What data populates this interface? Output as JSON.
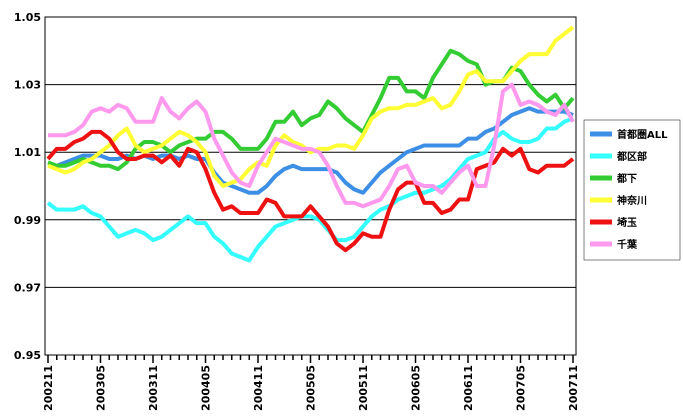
{
  "chart_data": {
    "type": "line",
    "categories": [
      "200211",
      null,
      null,
      null,
      null,
      null,
      "200305",
      null,
      null,
      null,
      null,
      null,
      "200311",
      null,
      null,
      null,
      null,
      null,
      "200405",
      null,
      null,
      null,
      null,
      null,
      "200411",
      null,
      null,
      null,
      null,
      null,
      "200505",
      null,
      null,
      null,
      null,
      null,
      "200511",
      null,
      null,
      null,
      null,
      null,
      "200605",
      null,
      null,
      null,
      null,
      null,
      "200611",
      null,
      null,
      null,
      null,
      null,
      "200705",
      null,
      null,
      null,
      null,
      null,
      "200711"
    ],
    "ylim": [
      0.95,
      1.05
    ],
    "yticks": [
      0.95,
      0.97,
      0.99,
      1.01,
      1.03,
      1.05
    ],
    "grid": true,
    "legend": "right",
    "series": [
      {
        "name": "首都圏ALL",
        "color": "#3d8fe6",
        "values": [
          1.006,
          1.006,
          1.007,
          1.008,
          1.009,
          1.009,
          1.009,
          1.008,
          1.008,
          1.009,
          1.008,
          1.009,
          1.008,
          1.009,
          1.009,
          1.008,
          1.009,
          1.008,
          1.008,
          1.004,
          1.001,
          1.0,
          0.999,
          0.998,
          0.998,
          1.0,
          1.003,
          1.005,
          1.006,
          1.005,
          1.005,
          1.005,
          1.005,
          1.004,
          1.001,
          0.999,
          0.998,
          1.001,
          1.004,
          1.006,
          1.008,
          1.01,
          1.011,
          1.012,
          1.012,
          1.012,
          1.012,
          1.012,
          1.014,
          1.014,
          1.016,
          1.017,
          1.019,
          1.021,
          1.022,
          1.023,
          1.022,
          1.022,
          1.022,
          1.022,
          1.021
        ]
      },
      {
        "name": "都区部",
        "color": "#33ffff",
        "values": [
          0.995,
          0.993,
          0.993,
          0.993,
          0.994,
          0.992,
          0.991,
          0.988,
          0.985,
          0.986,
          0.987,
          0.986,
          0.984,
          0.985,
          0.987,
          0.989,
          0.991,
          0.989,
          0.989,
          0.985,
          0.983,
          0.98,
          0.979,
          0.978,
          0.982,
          0.985,
          0.988,
          0.989,
          0.99,
          0.991,
          0.991,
          0.99,
          0.987,
          0.984,
          0.984,
          0.985,
          0.988,
          0.991,
          0.993,
          0.994,
          0.996,
          0.997,
          0.998,
          0.998,
          0.999,
          1.0,
          1.002,
          1.005,
          1.008,
          1.009,
          1.01,
          1.014,
          1.016,
          1.014,
          1.013,
          1.013,
          1.014,
          1.017,
          1.017,
          1.019,
          1.02
        ]
      },
      {
        "name": "都下",
        "color": "#33cc33",
        "values": [
          1.007,
          1.006,
          1.006,
          1.007,
          1.008,
          1.007,
          1.006,
          1.006,
          1.005,
          1.007,
          1.011,
          1.013,
          1.013,
          1.012,
          1.01,
          1.012,
          1.013,
          1.014,
          1.014,
          1.016,
          1.016,
          1.014,
          1.011,
          1.011,
          1.011,
          1.014,
          1.019,
          1.019,
          1.022,
          1.018,
          1.02,
          1.021,
          1.025,
          1.023,
          1.02,
          1.018,
          1.016,
          1.021,
          1.026,
          1.032,
          1.032,
          1.028,
          1.028,
          1.026,
          1.032,
          1.036,
          1.04,
          1.039,
          1.037,
          1.036,
          1.03,
          1.031,
          1.031,
          1.035,
          1.034,
          1.03,
          1.027,
          1.025,
          1.027,
          1.023,
          1.026
        ]
      },
      {
        "name": "神奈川",
        "color": "#ffff33",
        "values": [
          1.006,
          1.005,
          1.004,
          1.005,
          1.007,
          1.008,
          1.01,
          1.012,
          1.015,
          1.017,
          1.012,
          1.01,
          1.011,
          1.012,
          1.014,
          1.016,
          1.015,
          1.013,
          1.01,
          1.003,
          1.0,
          1.001,
          1.002,
          1.005,
          1.007,
          1.006,
          1.012,
          1.015,
          1.013,
          1.012,
          1.01,
          1.011,
          1.011,
          1.012,
          1.012,
          1.011,
          1.015,
          1.02,
          1.022,
          1.023,
          1.023,
          1.024,
          1.024,
          1.025,
          1.026,
          1.023,
          1.024,
          1.028,
          1.033,
          1.034,
          1.031,
          1.031,
          1.031,
          1.034,
          1.037,
          1.039,
          1.039,
          1.039,
          1.043,
          1.045,
          1.047
        ]
      },
      {
        "name": "埼玉",
        "color": "#ee1111",
        "values": [
          1.008,
          1.011,
          1.011,
          1.013,
          1.014,
          1.016,
          1.016,
          1.014,
          1.01,
          1.008,
          1.008,
          1.009,
          1.009,
          1.007,
          1.009,
          1.006,
          1.011,
          1.01,
          1.005,
          0.998,
          0.993,
          0.994,
          0.992,
          0.992,
          0.992,
          0.996,
          0.995,
          0.991,
          0.991,
          0.991,
          0.994,
          0.991,
          0.988,
          0.983,
          0.981,
          0.983,
          0.986,
          0.985,
          0.985,
          0.993,
          0.999,
          1.001,
          1.001,
          0.995,
          0.995,
          0.992,
          0.993,
          0.996,
          0.996,
          1.005,
          1.006,
          1.007,
          1.011,
          1.009,
          1.011,
          1.005,
          1.004,
          1.006,
          1.006,
          1.006,
          1.008
        ]
      },
      {
        "name": "千葉",
        "color": "#ff99ee",
        "values": [
          1.015,
          1.015,
          1.015,
          1.016,
          1.018,
          1.022,
          1.023,
          1.022,
          1.024,
          1.023,
          1.019,
          1.019,
          1.019,
          1.026,
          1.022,
          1.02,
          1.023,
          1.025,
          1.022,
          1.014,
          1.009,
          1.004,
          1.001,
          1.0,
          1.006,
          1.01,
          1.014,
          1.013,
          1.012,
          1.011,
          1.011,
          1.01,
          1.006,
          1.0,
          0.995,
          0.995,
          0.994,
          0.995,
          0.996,
          1.0,
          1.005,
          1.006,
          1.001,
          1.0,
          1.0,
          0.998,
          1.001,
          1.004,
          1.006,
          1.0,
          1.0,
          1.012,
          1.028,
          1.03,
          1.024,
          1.025,
          1.024,
          1.022,
          1.021,
          1.024,
          1.019
        ]
      }
    ]
  }
}
